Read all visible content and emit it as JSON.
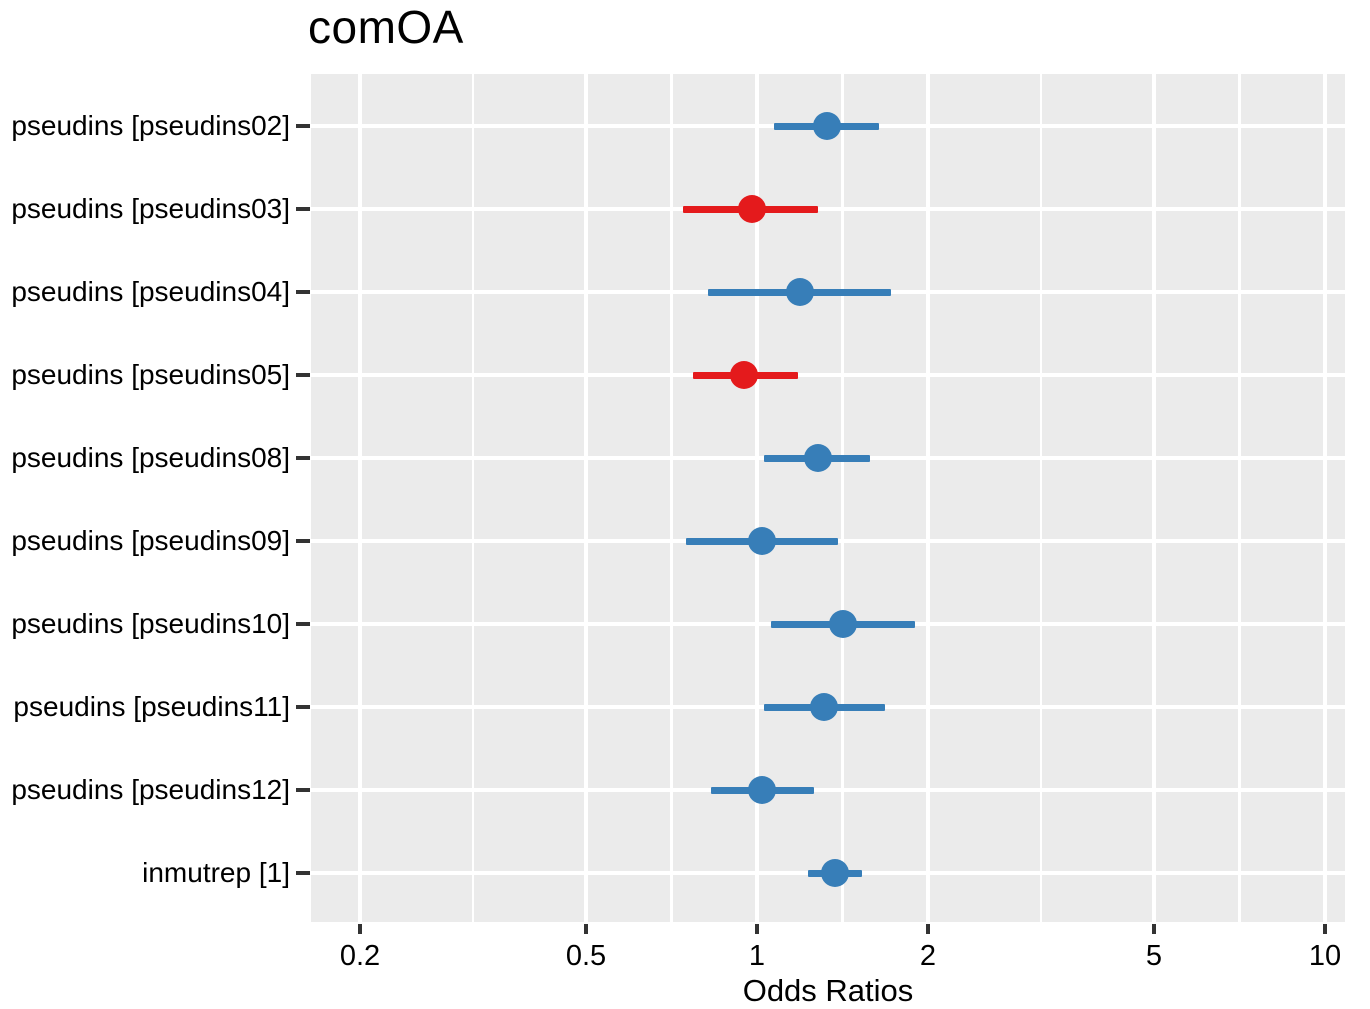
{
  "figure": {
    "title": "comOA",
    "x_axis_label": "Odds Ratios"
  },
  "chart_data": {
    "type": "scatter",
    "variant": "forest-plot-dot-whisker",
    "orientation": "horizontal",
    "title": "comOA",
    "xlabel": "Odds Ratios",
    "ylabel": "",
    "x_scale": "log10",
    "x_range": [
      0.164,
      10.85
    ],
    "x_ticks": [
      0.2,
      0.5,
      1,
      2,
      5,
      10
    ],
    "x_tick_labels": [
      "0.2",
      "0.5",
      "1",
      "2",
      "5",
      "10"
    ],
    "x_minor_gridlines": [
      0.3162,
      0.7071,
      1.4142,
      3.1623,
      7.0711
    ],
    "grid": "white major+minor verticals and major horizontals on gray panel",
    "legend": "none",
    "colors": {
      "positive_effect": "#377EB8",
      "negative_effect": "#E41A1C",
      "panel_background": "#EBEBEB",
      "gridline": "#FFFFFF",
      "tick_mark": "#333333",
      "text": "#000000"
    },
    "rows": [
      {
        "label": "pseudins [pseudins02]",
        "or": 1.33,
        "ci_low": 1.07,
        "ci_high": 1.64,
        "color": "#377EB8"
      },
      {
        "label": "pseudins [pseudins03]",
        "or": 0.98,
        "ci_low": 0.74,
        "ci_high": 1.28,
        "color": "#E41A1C"
      },
      {
        "label": "pseudins [pseudins04]",
        "or": 1.19,
        "ci_low": 0.82,
        "ci_high": 1.72,
        "color": "#377EB8"
      },
      {
        "label": "pseudins [pseudins05]",
        "or": 0.95,
        "ci_low": 0.77,
        "ci_high": 1.18,
        "color": "#E41A1C"
      },
      {
        "label": "pseudins [pseudins08]",
        "or": 1.28,
        "ci_low": 1.03,
        "ci_high": 1.58,
        "color": "#377EB8"
      },
      {
        "label": "pseudins [pseudins09]",
        "or": 1.02,
        "ci_low": 0.75,
        "ci_high": 1.39,
        "color": "#377EB8"
      },
      {
        "label": "pseudins [pseudins10]",
        "or": 1.42,
        "ci_low": 1.06,
        "ci_high": 1.9,
        "color": "#377EB8"
      },
      {
        "label": "pseudins [pseudins11]",
        "or": 1.31,
        "ci_low": 1.03,
        "ci_high": 1.68,
        "color": "#377EB8"
      },
      {
        "label": "pseudins [pseudins12]",
        "or": 1.02,
        "ci_low": 0.83,
        "ci_high": 1.26,
        "color": "#377EB8"
      },
      {
        "label": "inmutrep [1]",
        "or": 1.37,
        "ci_low": 1.23,
        "ci_high": 1.53,
        "color": "#377EB8"
      }
    ]
  }
}
